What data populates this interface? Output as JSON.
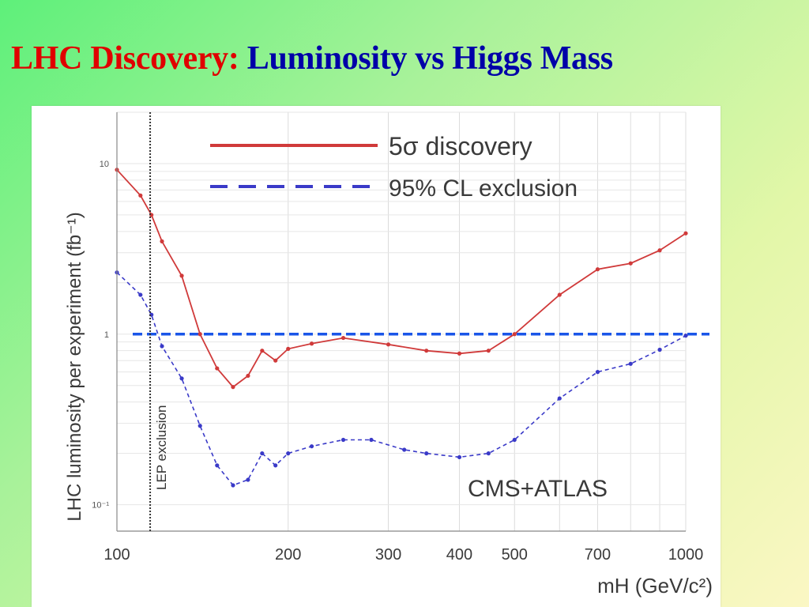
{
  "slide": {
    "title_part1": "LHC Discovery:",
    "title_part2": " Luminosity vs Higgs Mass"
  },
  "colors": {
    "discovery": "#d03a3a",
    "exclusion": "#3a3ac8",
    "reference_line": "#1a55e8",
    "title_red": "#e00000",
    "title_blue": "#0000a8"
  },
  "chart_data": {
    "type": "line",
    "xscale": "log",
    "yscale": "log",
    "xlim": [
      100,
      1000
    ],
    "ylim": [
      0.07,
      20
    ],
    "xlabel": "mH (GeV/c²)",
    "ylabel": "LHC luminosity per experiment (fb⁻¹)",
    "xticks": [
      100,
      200,
      300,
      400,
      500,
      700,
      1000
    ],
    "xtick_labels": [
      "100",
      "200",
      "300",
      "400",
      "500",
      "700",
      "1000"
    ],
    "yticks": [
      0.1,
      1,
      10
    ],
    "ytick_labels": [
      "10⁻¹",
      "1",
      "10"
    ],
    "series": [
      {
        "name": "5σ discovery",
        "style": "solid",
        "x": [
          100,
          110,
          115,
          120,
          130,
          140,
          150,
          160,
          170,
          180,
          190,
          200,
          220,
          250,
          300,
          350,
          400,
          450,
          500,
          600,
          700,
          800,
          900,
          1000
        ],
        "y": [
          9.2,
          6.5,
          5.0,
          3.5,
          2.2,
          1.0,
          0.63,
          0.49,
          0.57,
          0.8,
          0.7,
          0.82,
          0.88,
          0.95,
          0.87,
          0.8,
          0.77,
          0.8,
          1.0,
          1.7,
          2.4,
          2.6,
          3.1,
          3.9
        ]
      },
      {
        "name": "95% CL exclusion",
        "style": "dashed",
        "x": [
          100,
          110,
          115,
          120,
          130,
          140,
          150,
          160,
          170,
          180,
          190,
          200,
          220,
          250,
          280,
          320,
          350,
          400,
          450,
          500,
          600,
          700,
          800,
          900,
          1000
        ],
        "y": [
          2.3,
          1.7,
          1.3,
          0.85,
          0.55,
          0.29,
          0.17,
          0.13,
          0.14,
          0.2,
          0.17,
          0.2,
          0.22,
          0.24,
          0.24,
          0.21,
          0.2,
          0.19,
          0.2,
          0.24,
          0.42,
          0.6,
          0.67,
          0.81,
          0.98
        ]
      }
    ],
    "reference_line": {
      "y": 1,
      "style": "dashed"
    },
    "lep_exclusion": {
      "x": 114.4,
      "label": "LEP exclusion"
    },
    "legend": {
      "placement": "top-right",
      "entries": [
        "5σ discovery",
        "95% CL exclusion"
      ]
    },
    "annotation": "CMS+ATLAS",
    "grid": true
  }
}
